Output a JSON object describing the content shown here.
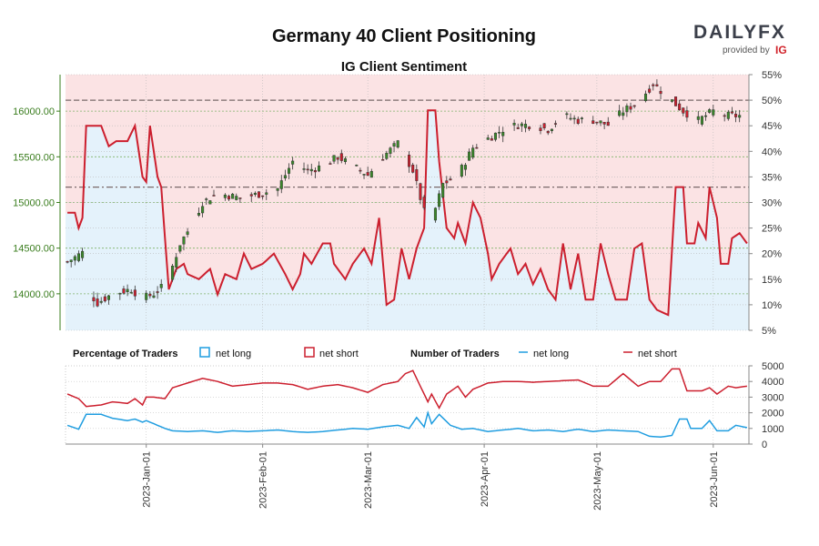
{
  "header": {
    "title": "Germany 40 Client Positioning",
    "subtitle": "IG Client Sentiment",
    "logo_text": "DAILYFX",
    "logo_provided_by": "provided by",
    "logo_brand": "IG"
  },
  "legend": {
    "pct_title": "Percentage of Traders",
    "pct_long": "net long",
    "pct_short": "net short",
    "num_title": "Number of Traders",
    "num_long": "net long",
    "num_short": "net short"
  },
  "colors": {
    "long": "#1f9de0",
    "short": "#cc1f2e",
    "candle_up": "#3a8a2a",
    "candle_down": "#cc1f2e",
    "long_area": "#e4f2fb",
    "short_area": "#fbe3e4",
    "price_axis": "#3a7d1e"
  },
  "chart_data": [
    {
      "type": "candlestick",
      "title": "Germany 40 Client Positioning",
      "subtitle": "IG Client Sentiment",
      "y_left": {
        "ticks": [
          14000,
          14500,
          15000,
          15500,
          16000
        ],
        "tick_labels": [
          "14000.00",
          "14500.00",
          "15000.00",
          "15500.00",
          "16000.00"
        ],
        "range": [
          13600,
          16400
        ]
      },
      "y_right": {
        "ticks": [
          5,
          10,
          15,
          20,
          25,
          30,
          35,
          40,
          45,
          50,
          55
        ],
        "tick_labels": [
          "5%",
          "10%",
          "15%",
          "20%",
          "25%",
          "30%",
          "35%",
          "40%",
          "45%",
          "50%",
          "55%"
        ],
        "range": [
          5,
          55
        ]
      },
      "reference_lines": [
        {
          "value_pct": 50
        },
        {
          "value_pct": 33
        }
      ],
      "close_anchors": [
        [
          0,
          14350
        ],
        [
          4,
          14450
        ],
        [
          6,
          14000
        ],
        [
          8,
          13900
        ],
        [
          12,
          14000
        ],
        [
          17,
          14050
        ],
        [
          20,
          13950
        ],
        [
          23,
          14000
        ],
        [
          26,
          14100
        ],
        [
          28,
          14300
        ],
        [
          30,
          14550
        ],
        [
          33,
          14750
        ],
        [
          36,
          15000
        ],
        [
          40,
          15100
        ],
        [
          46,
          15050
        ],
        [
          52,
          15100
        ],
        [
          56,
          15150
        ],
        [
          60,
          15450
        ],
        [
          64,
          15350
        ],
        [
          68,
          15400
        ],
        [
          72,
          15500
        ],
        [
          76,
          15400
        ],
        [
          80,
          15300
        ],
        [
          84,
          15500
        ],
        [
          88,
          15650
        ],
        [
          92,
          15350
        ],
        [
          95,
          14900
        ],
        [
          97,
          14800
        ],
        [
          100,
          15200
        ],
        [
          104,
          15300
        ],
        [
          108,
          15600
        ],
        [
          112,
          15700
        ],
        [
          116,
          15800
        ],
        [
          120,
          15850
        ],
        [
          124,
          15850
        ],
        [
          128,
          15800
        ],
        [
          132,
          15950
        ],
        [
          136,
          15900
        ],
        [
          140,
          15900
        ],
        [
          144,
          15850
        ],
        [
          148,
          16000
        ],
        [
          152,
          16100
        ],
        [
          156,
          16300
        ],
        [
          160,
          16150
        ],
        [
          164,
          16000
        ],
        [
          168,
          15900
        ],
        [
          172,
          16000
        ],
        [
          176,
          15950
        ]
      ],
      "net_long_pct_anchors": [
        [
          0,
          28
        ],
        [
          2,
          28
        ],
        [
          3,
          25
        ],
        [
          4,
          27
        ],
        [
          5,
          45
        ],
        [
          9,
          45
        ],
        [
          11,
          41
        ],
        [
          13,
          42
        ],
        [
          16,
          42
        ],
        [
          18,
          45
        ],
        [
          20,
          35
        ],
        [
          21,
          34
        ],
        [
          22,
          45
        ],
        [
          24,
          35
        ],
        [
          25,
          33
        ],
        [
          26,
          23
        ],
        [
          27,
          13
        ],
        [
          29,
          17
        ],
        [
          31,
          18
        ],
        [
          32,
          16
        ],
        [
          35,
          15
        ],
        [
          38,
          17
        ],
        [
          40,
          12
        ],
        [
          42,
          16
        ],
        [
          45,
          15
        ],
        [
          47,
          20
        ],
        [
          49,
          17
        ],
        [
          52,
          18
        ],
        [
          55,
          20
        ],
        [
          58,
          16
        ],
        [
          60,
          13
        ],
        [
          62,
          16
        ],
        [
          63,
          20
        ],
        [
          65,
          18
        ],
        [
          68,
          22
        ],
        [
          70,
          22
        ],
        [
          71,
          18
        ],
        [
          74,
          15
        ],
        [
          76,
          18
        ],
        [
          79,
          21
        ],
        [
          81,
          18
        ],
        [
          83,
          27
        ],
        [
          85,
          10
        ],
        [
          87,
          11
        ],
        [
          89,
          21
        ],
        [
          91,
          15
        ],
        [
          93,
          21
        ],
        [
          95,
          25
        ],
        [
          96,
          48
        ],
        [
          98,
          48
        ],
        [
          99,
          38
        ],
        [
          101,
          25
        ],
        [
          103,
          23
        ],
        [
          104,
          26
        ],
        [
          106,
          22
        ],
        [
          108,
          30
        ],
        [
          110,
          27
        ],
        [
          112,
          20
        ],
        [
          113,
          15
        ],
        [
          115,
          18
        ],
        [
          118,
          21
        ],
        [
          120,
          16
        ],
        [
          122,
          18
        ],
        [
          124,
          14
        ],
        [
          126,
          17
        ],
        [
          128,
          13
        ],
        [
          130,
          11
        ],
        [
          132,
          22
        ],
        [
          134,
          13
        ],
        [
          136,
          20
        ],
        [
          138,
          11
        ],
        [
          140,
          11
        ],
        [
          142,
          22
        ],
        [
          144,
          16
        ],
        [
          146,
          11
        ],
        [
          149,
          11
        ],
        [
          151,
          21
        ],
        [
          153,
          22
        ],
        [
          155,
          11
        ],
        [
          157,
          9
        ],
        [
          160,
          8
        ],
        [
          162,
          33
        ],
        [
          164,
          33
        ],
        [
          165,
          22
        ],
        [
          167,
          22
        ],
        [
          168,
          26
        ],
        [
          170,
          23
        ],
        [
          171,
          33
        ],
        [
          173,
          27
        ],
        [
          174,
          18
        ],
        [
          176,
          18
        ],
        [
          177,
          23
        ],
        [
          179,
          24
        ],
        [
          181,
          22
        ]
      ],
      "net_long_count_anchors": [
        [
          0,
          1200
        ],
        [
          3,
          950
        ],
        [
          5,
          1900
        ],
        [
          9,
          1900
        ],
        [
          12,
          1650
        ],
        [
          16,
          1500
        ],
        [
          18,
          1600
        ],
        [
          20,
          1400
        ],
        [
          21,
          1500
        ],
        [
          23,
          1300
        ],
        [
          26,
          1000
        ],
        [
          28,
          850
        ],
        [
          32,
          800
        ],
        [
          36,
          850
        ],
        [
          40,
          750
        ],
        [
          44,
          850
        ],
        [
          48,
          800
        ],
        [
          52,
          850
        ],
        [
          56,
          900
        ],
        [
          60,
          800
        ],
        [
          64,
          750
        ],
        [
          68,
          800
        ],
        [
          72,
          900
        ],
        [
          76,
          1000
        ],
        [
          80,
          950
        ],
        [
          84,
          1100
        ],
        [
          88,
          1200
        ],
        [
          91,
          1000
        ],
        [
          93,
          1700
        ],
        [
          95,
          1100
        ],
        [
          96,
          2000
        ],
        [
          97,
          1300
        ],
        [
          99,
          1900
        ],
        [
          102,
          1200
        ],
        [
          105,
          950
        ],
        [
          108,
          1000
        ],
        [
          112,
          800
        ],
        [
          116,
          900
        ],
        [
          120,
          1000
        ],
        [
          124,
          850
        ],
        [
          128,
          900
        ],
        [
          132,
          800
        ],
        [
          136,
          950
        ],
        [
          140,
          800
        ],
        [
          144,
          900
        ],
        [
          148,
          850
        ],
        [
          152,
          800
        ],
        [
          155,
          500
        ],
        [
          158,
          450
        ],
        [
          161,
          550
        ],
        [
          163,
          1600
        ],
        [
          165,
          1600
        ],
        [
          166,
          1000
        ],
        [
          169,
          1000
        ],
        [
          171,
          1500
        ],
        [
          173,
          850
        ],
        [
          176,
          850
        ],
        [
          178,
          1200
        ],
        [
          181,
          1050
        ]
      ],
      "net_short_count_anchors": [
        [
          0,
          3200
        ],
        [
          3,
          2900
        ],
        [
          5,
          2400
        ],
        [
          9,
          2500
        ],
        [
          12,
          2700
        ],
        [
          16,
          2600
        ],
        [
          18,
          2900
        ],
        [
          20,
          2500
        ],
        [
          21,
          3000
        ],
        [
          23,
          3000
        ],
        [
          26,
          2900
        ],
        [
          28,
          3600
        ],
        [
          32,
          3900
        ],
        [
          36,
          4200
        ],
        [
          40,
          4000
        ],
        [
          44,
          3700
        ],
        [
          48,
          3800
        ],
        [
          52,
          3900
        ],
        [
          56,
          3900
        ],
        [
          60,
          3800
        ],
        [
          64,
          3500
        ],
        [
          68,
          3700
        ],
        [
          72,
          3800
        ],
        [
          76,
          3600
        ],
        [
          80,
          3300
        ],
        [
          84,
          3800
        ],
        [
          88,
          4000
        ],
        [
          90,
          4500
        ],
        [
          92,
          4700
        ],
        [
          94,
          3700
        ],
        [
          96,
          2700
        ],
        [
          97,
          3200
        ],
        [
          99,
          2300
        ],
        [
          101,
          3200
        ],
        [
          104,
          3700
        ],
        [
          106,
          3000
        ],
        [
          108,
          3500
        ],
        [
          112,
          3900
        ],
        [
          116,
          4000
        ],
        [
          120,
          4000
        ],
        [
          124,
          3950
        ],
        [
          128,
          4000
        ],
        [
          132,
          4050
        ],
        [
          136,
          4100
        ],
        [
          140,
          3700
        ],
        [
          144,
          3700
        ],
        [
          148,
          4500
        ],
        [
          152,
          3700
        ],
        [
          155,
          4000
        ],
        [
          158,
          4000
        ],
        [
          161,
          4800
        ],
        [
          163,
          4800
        ],
        [
          165,
          3400
        ],
        [
          169,
          3400
        ],
        [
          171,
          3600
        ],
        [
          173,
          3200
        ],
        [
          176,
          3700
        ],
        [
          178,
          3600
        ],
        [
          181,
          3700
        ]
      ]
    },
    {
      "type": "line",
      "y": {
        "ticks": [
          0,
          1000,
          2000,
          3000,
          4000,
          5000
        ],
        "tick_labels": [
          "0",
          "1000",
          "2000",
          "3000",
          "4000",
          "5000"
        ],
        "range": [
          0,
          5000
        ]
      },
      "x_tick_labels": [
        "2023-Jan-01",
        "2023-Feb-01",
        "2023-Mar-01",
        "2023-Apr-01",
        "2023-May-01",
        "2023-Jun-01"
      ],
      "x_tick_index": [
        21,
        52,
        80,
        111,
        141,
        172
      ],
      "n_days": 182
    }
  ]
}
